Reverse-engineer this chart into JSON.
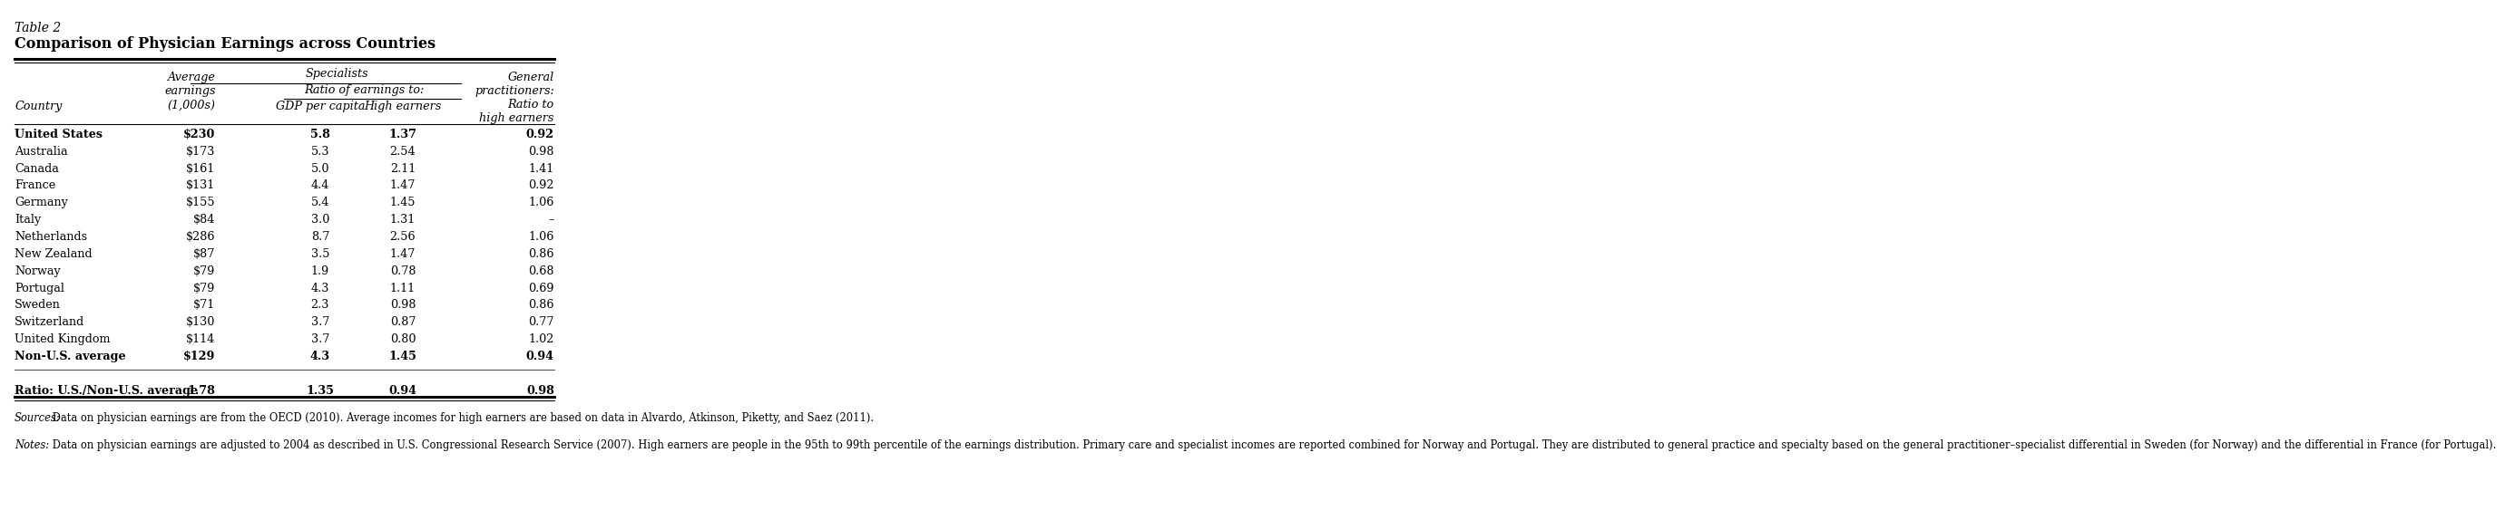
{
  "table_label": "Table 2",
  "title": "Comparison of Physician Earnings across Countries",
  "countries": [
    "United States",
    "Australia",
    "Canada",
    "France",
    "Germany",
    "Italy",
    "Netherlands",
    "New Zealand",
    "Norway",
    "Portugal",
    "Sweden",
    "Switzerland",
    "United Kingdom",
    "Non-U.S. average"
  ],
  "avg_earnings": [
    "$230",
    "$173",
    "$161",
    "$131",
    "$155",
    "$84",
    "$286",
    "$87",
    "$79",
    "$79",
    "$71",
    "$130",
    "$114",
    "$129"
  ],
  "gdp_per_capita": [
    "5.8",
    "5.3",
    "5.0",
    "4.4",
    "5.4",
    "3.0",
    "8.7",
    "3.5",
    "1.9",
    "4.3",
    "2.3",
    "3.7",
    "3.7",
    "4.3"
  ],
  "high_earners": [
    "1.37",
    "2.54",
    "2.11",
    "1.47",
    "1.45",
    "1.31",
    "2.56",
    "1.47",
    "0.78",
    "1.11",
    "0.98",
    "0.87",
    "0.80",
    "1.45"
  ],
  "gp_ratio": [
    "0.92",
    "0.98",
    "1.41",
    "0.92",
    "1.06",
    "–",
    "1.06",
    "0.86",
    "0.68",
    "0.69",
    "0.86",
    "0.77",
    "1.02",
    "0.94"
  ],
  "ratio_row_label": "Ratio: U.S./Non-U.S. average",
  "ratio_row": [
    "1.78",
    "1.35",
    "0.94",
    "0.98"
  ],
  "sources_label": "Sources:",
  "sources_text": " Data on physician earnings are from the OECD (2010). Average incomes for high earners are based on data in Alvardo, Atkinson, Piketty, and Saez (2011).",
  "notes_label": "Notes:",
  "notes_text": " Data on physician earnings are adjusted to 2004 as described in U.S. Congressional Research Service (2007). High earners are people in the 95th to 99th percentile of the earnings distribution. Primary care and specialist incomes are reported combined for Norway and Portugal. They are distributed to general practice and specialty based on the general practitioner–specialist differential in Sweden (for Norway) and the differential in France (for Portugal).",
  "bg_color": "#ffffff",
  "text_color": "#000000",
  "font_size": 9.2,
  "header_font_size": 9.2,
  "small_font_size": 8.3
}
